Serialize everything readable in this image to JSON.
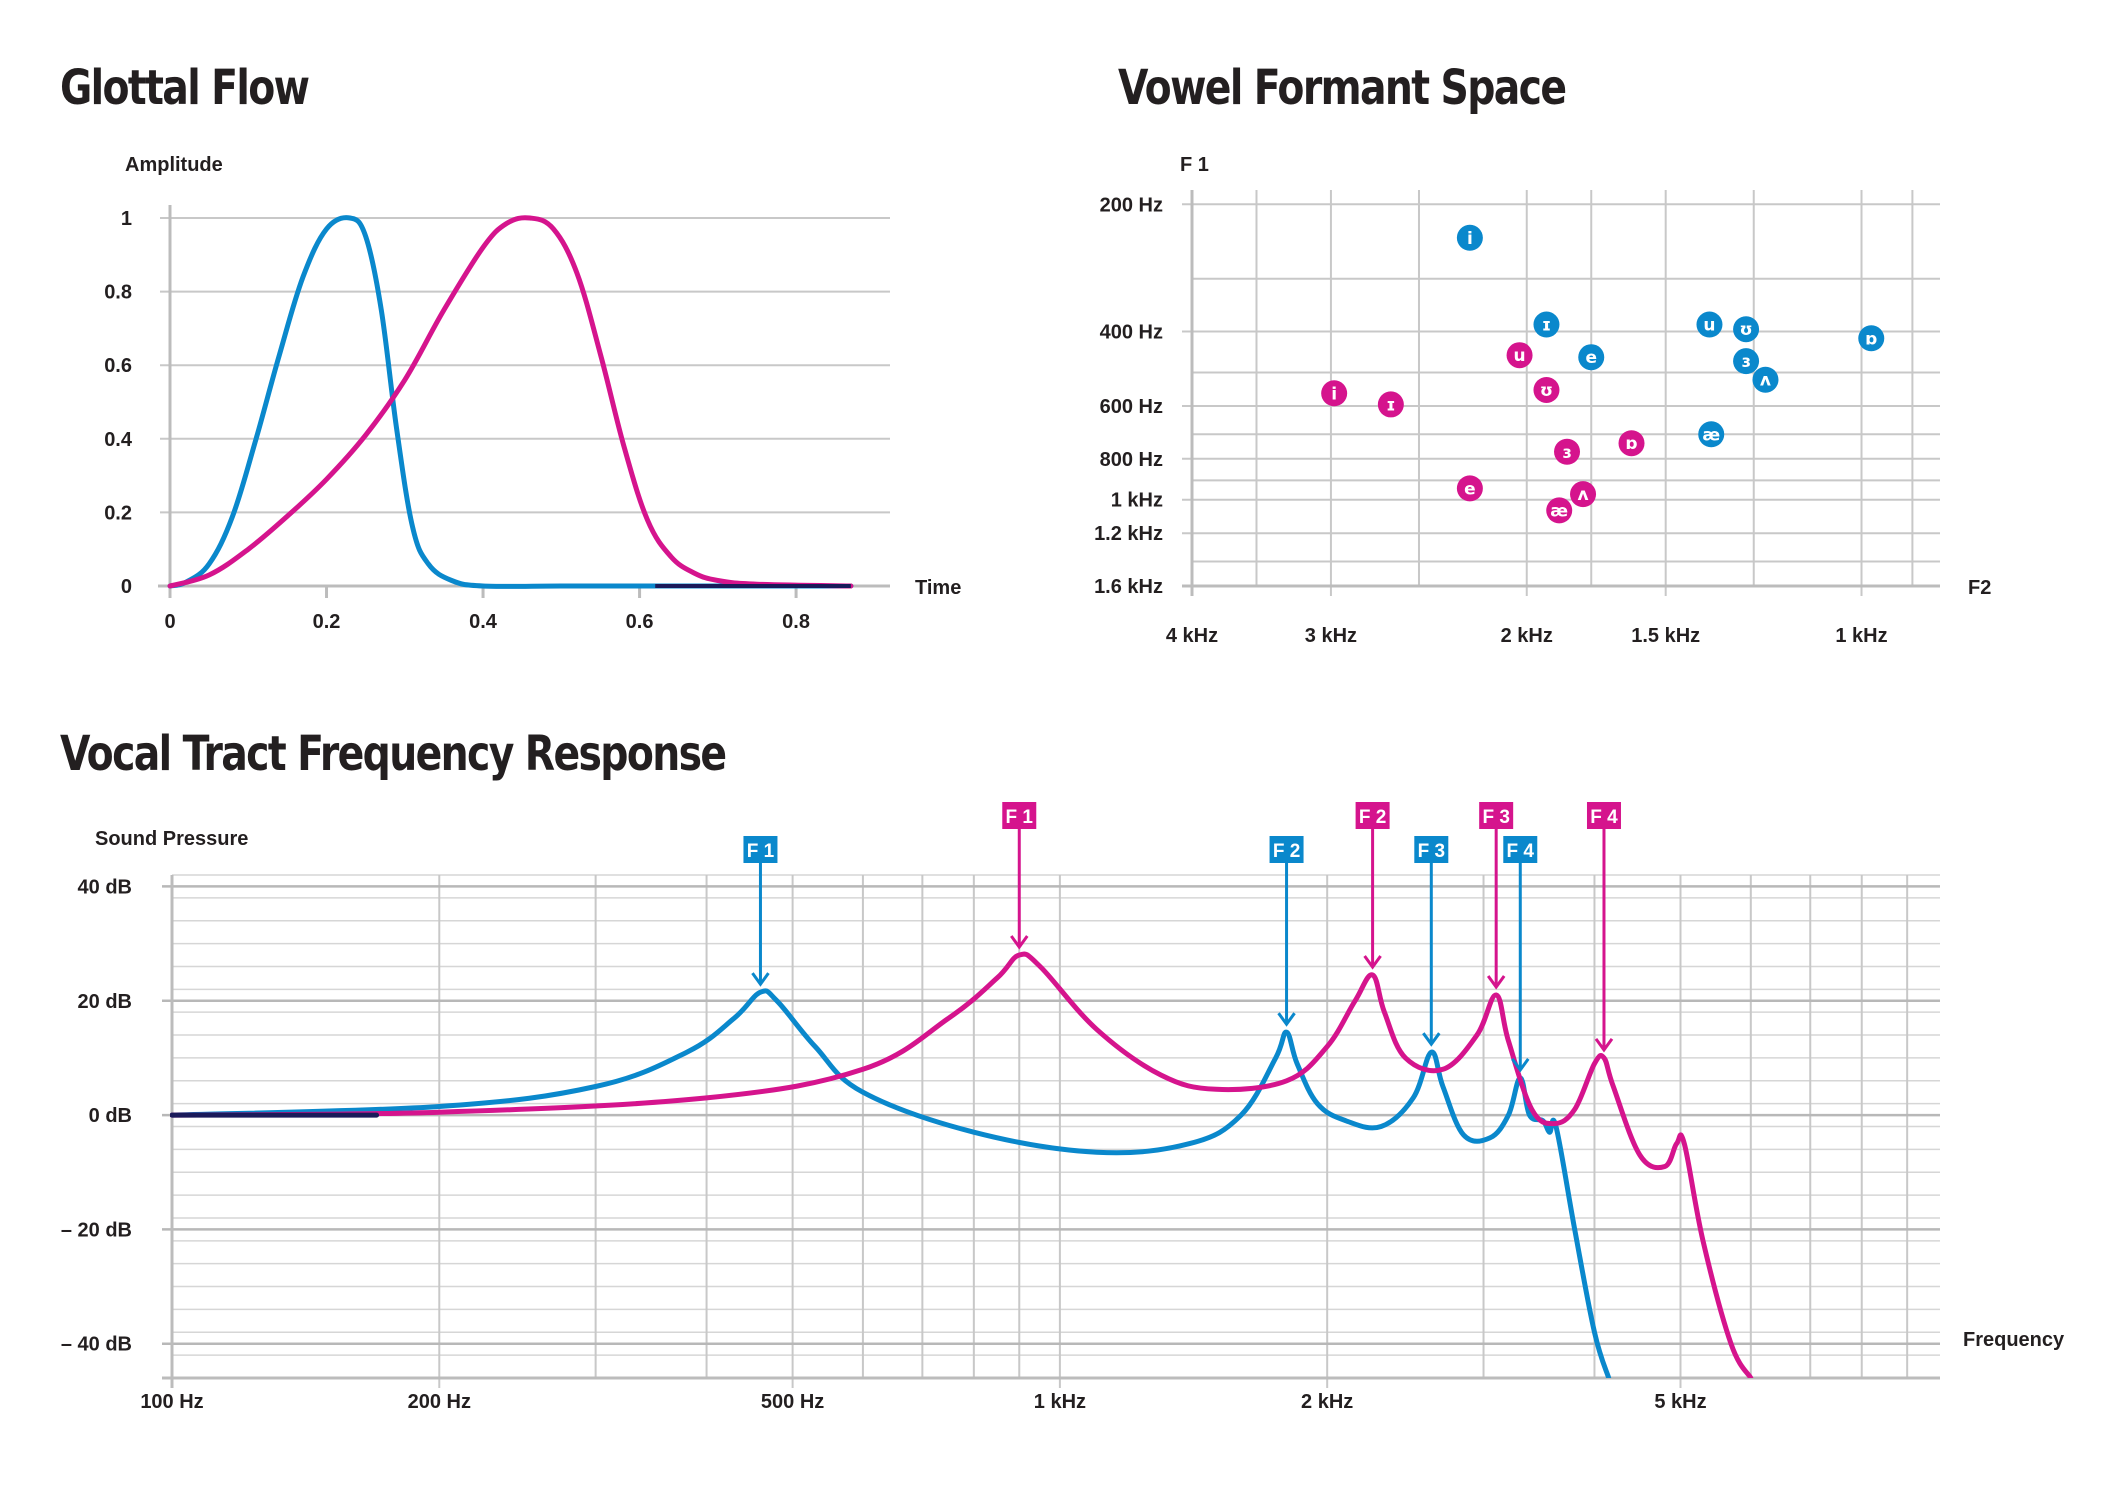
{
  "titles": {
    "glottal": "Glottal Flow",
    "formant": "Vowel Formant Space",
    "response": "Vocal Tract Frequency Response"
  },
  "colors": {
    "blue": "#0a88cc",
    "magenta": "#d5148d",
    "dark": "#1a1a5a"
  },
  "chart_data": [
    {
      "type": "line",
      "id": "glottal",
      "title": "Glottal Flow",
      "xlabel": "Time",
      "ylabel": "Amplitude",
      "xlim": [
        0,
        0.92
      ],
      "ylim": [
        0,
        1
      ],
      "xticks": [
        0,
        0.2,
        0.4,
        0.6,
        0.8
      ],
      "xtick_labels": [
        "0",
        "0.2",
        "0.4",
        "0.6",
        "0.8"
      ],
      "yticks": [
        0,
        0.2,
        0.4,
        0.6,
        0.8,
        1
      ],
      "ytick_labels": [
        "0",
        "0.2",
        "0.4",
        "0.6",
        "0.8",
        "1"
      ],
      "series": [
        {
          "color": "#0a88cc",
          "x": [
            0,
            0.02,
            0.05,
            0.08,
            0.11,
            0.14,
            0.17,
            0.2,
            0.23,
            0.25,
            0.27,
            0.29,
            0.31,
            0.33,
            0.36,
            0.4,
            0.5,
            0.6,
            0.7,
            0.87
          ],
          "y": [
            0,
            0.01,
            0.06,
            0.19,
            0.4,
            0.63,
            0.84,
            0.97,
            1.0,
            0.95,
            0.75,
            0.42,
            0.16,
            0.06,
            0.015,
            0.0,
            0.0,
            0.0,
            0.0,
            0.0
          ]
        },
        {
          "color": "#d5148d",
          "x": [
            0,
            0.05,
            0.1,
            0.15,
            0.2,
            0.25,
            0.3,
            0.35,
            0.4,
            0.43,
            0.46,
            0.49,
            0.52,
            0.55,
            0.58,
            0.61,
            0.64,
            0.67,
            0.7,
            0.75,
            0.87
          ],
          "y": [
            0,
            0.03,
            0.1,
            0.19,
            0.29,
            0.41,
            0.56,
            0.75,
            0.92,
            0.985,
            1.0,
            0.97,
            0.85,
            0.63,
            0.38,
            0.18,
            0.08,
            0.035,
            0.015,
            0.005,
            0.0
          ]
        }
      ]
    },
    {
      "type": "scatter",
      "id": "formant",
      "title": "Vowel Formant Space",
      "xlabel": "F2",
      "ylabel": "F 1",
      "x_scale": "log-reversed",
      "y_scale": "log",
      "xlim": [
        4000,
        850
      ],
      "ylim": [
        185,
        1600
      ],
      "xticks": [
        4000,
        3000,
        2000,
        1500,
        1000
      ],
      "xtick_labels": [
        "4 kHz",
        "3 kHz",
        "2 kHz",
        "1.5 kHz",
        "1 kHz"
      ],
      "x_minor": [
        3500,
        2500,
        1750,
        1250,
        900
      ],
      "yticks": [
        200,
        400,
        600,
        800,
        1000,
        1200,
        1600
      ],
      "ytick_labels": [
        "200 Hz",
        "400 Hz",
        "600 Hz",
        "800 Hz",
        "1 kHz",
        "1.2 kHz",
        "1.6 kHz"
      ],
      "y_minor": [
        300,
        500,
        700,
        900,
        1400
      ],
      "points": [
        {
          "label": "i",
          "color": "#0a88cc",
          "f2": 2250,
          "f1": 240
        },
        {
          "label": "ɪ",
          "color": "#0a88cc",
          "f2": 1920,
          "f1": 385
        },
        {
          "label": "e",
          "color": "#0a88cc",
          "f2": 1750,
          "f1": 460
        },
        {
          "label": "u",
          "color": "#0a88cc",
          "f2": 1370,
          "f1": 385
        },
        {
          "label": "ʊ",
          "color": "#0a88cc",
          "f2": 1270,
          "f1": 395
        },
        {
          "label": "ɜ",
          "color": "#0a88cc",
          "f2": 1270,
          "f1": 470
        },
        {
          "label": "ʌ",
          "color": "#0a88cc",
          "f2": 1220,
          "f1": 520
        },
        {
          "label": "ɒ",
          "color": "#0a88cc",
          "f2": 980,
          "f1": 415
        },
        {
          "label": "æ",
          "color": "#0a88cc",
          "f2": 1365,
          "f1": 700
        },
        {
          "label": "i",
          "color": "#d5148d",
          "f2": 2980,
          "f1": 560
        },
        {
          "label": "ɪ",
          "color": "#d5148d",
          "f2": 2650,
          "f1": 595
        },
        {
          "label": "u",
          "color": "#d5148d",
          "f2": 2030,
          "f1": 455
        },
        {
          "label": "ʊ",
          "color": "#d5148d",
          "f2": 1920,
          "f1": 550
        },
        {
          "label": "ɜ",
          "color": "#d5148d",
          "f2": 1840,
          "f1": 770
        },
        {
          "label": "ɒ",
          "color": "#d5148d",
          "f2": 1610,
          "f1": 735
        },
        {
          "label": "e",
          "color": "#d5148d",
          "f2": 2250,
          "f1": 940
        },
        {
          "label": "ʌ",
          "color": "#d5148d",
          "f2": 1780,
          "f1": 970
        },
        {
          "label": "æ",
          "color": "#d5148d",
          "f2": 1870,
          "f1": 1060
        }
      ]
    },
    {
      "type": "line",
      "id": "response",
      "title": "Vocal Tract Frequency Response",
      "xlabel": "Frequency",
      "ylabel": "Sound Pressure",
      "x_scale": "log",
      "xlim": [
        100,
        9800
      ],
      "ylim": [
        -46,
        42
      ],
      "xticks": [
        100,
        200,
        500,
        1000,
        2000,
        5000
      ],
      "xtick_labels": [
        "100 Hz",
        "200 Hz",
        "500 Hz",
        "1 kHz",
        "2 kHz",
        "5 kHz"
      ],
      "x_minor": [
        300,
        400,
        600,
        700,
        800,
        900,
        3000,
        4000,
        6000,
        7000,
        8000,
        9000
      ],
      "yticks": [
        40,
        20,
        0,
        -20,
        -40
      ],
      "ytick_labels": [
        "40 dB",
        "20 dB",
        "0 dB",
        "– 20 dB",
        "– 40 dB"
      ],
      "y_minor_step": 4,
      "series": [
        {
          "color": "#0a88cc",
          "x": [
            100,
            200,
            300,
            380,
            430,
            460,
            480,
            530,
            600,
            800,
            1100,
            1400,
            1600,
            1750,
            1800,
            1850,
            1950,
            2100,
            2300,
            2500,
            2620,
            2700,
            2850,
            3050,
            3200,
            3300,
            3380,
            3500,
            3560,
            3620,
            3800,
            4000,
            4150
          ],
          "y": [
            0,
            1.5,
            5,
            11,
            17,
            21.5,
            20,
            12,
            4,
            -3,
            -6.5,
            -5,
            0,
            10,
            14.5,
            9,
            2,
            -1,
            -2,
            3,
            11,
            5,
            -3.5,
            -4,
            0,
            6.5,
            0,
            -1,
            -3,
            -2,
            -20,
            -38,
            -46
          ]
        },
        {
          "color": "#d5148d",
          "x": [
            100,
            200,
            400,
            600,
            750,
            850,
            900,
            950,
            1100,
            1300,
            1500,
            1800,
            2000,
            2150,
            2250,
            2320,
            2450,
            2700,
            2950,
            3100,
            3200,
            3400,
            3600,
            3800,
            4000,
            4100,
            4200,
            4500,
            4800,
            4950,
            5050,
            5300,
            5700,
            6000
          ],
          "y": [
            0,
            0.5,
            3,
            8,
            17,
            24,
            28,
            26,
            15,
            7,
            4.5,
            6,
            12,
            20,
            24.5,
            18,
            10,
            8,
            14,
            21,
            13,
            1,
            -1.5,
            1,
            9,
            10,
            5,
            -7,
            -9,
            -5,
            -5,
            -22,
            -40,
            -46
          ]
        },
        {
          "color": "#1a1a5a",
          "x": [
            100,
            170
          ],
          "y": [
            0,
            0
          ]
        }
      ],
      "annotations": [
        {
          "label": "F 1",
          "color": "#0a88cc",
          "x": 460,
          "peak_db": 21.5,
          "row": 2
        },
        {
          "label": "F 1",
          "color": "#d5148d",
          "x": 900,
          "peak_db": 28,
          "row": 1
        },
        {
          "label": "F 2",
          "color": "#0a88cc",
          "x": 1800,
          "peak_db": 14.5,
          "row": 2
        },
        {
          "label": "F 2",
          "color": "#d5148d",
          "x": 2250,
          "peak_db": 24.5,
          "row": 1
        },
        {
          "label": "F 3",
          "color": "#0a88cc",
          "x": 2620,
          "peak_db": 11,
          "row": 2
        },
        {
          "label": "F 3",
          "color": "#d5148d",
          "x": 3100,
          "peak_db": 21,
          "row": 1
        },
        {
          "label": "F 4",
          "color": "#0a88cc",
          "x": 3300,
          "peak_db": 6.5,
          "row": 2
        },
        {
          "label": "F 4",
          "color": "#d5148d",
          "x": 4100,
          "peak_db": 10,
          "row": 1
        }
      ]
    }
  ]
}
